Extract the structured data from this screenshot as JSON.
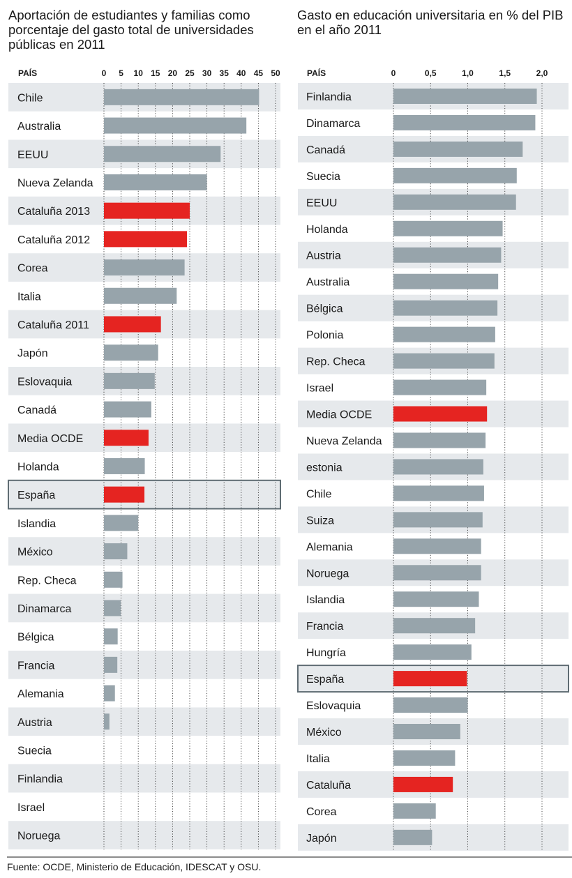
{
  "source": "Fuente: OCDE, Ministerio de Educación, IDESCAT y OSU.",
  "colors": {
    "bar": "#97a4ab",
    "highlight": "#e52421",
    "band": "#e6e9ec",
    "frame": "#5f6c73"
  },
  "chart_data": [
    {
      "type": "bar",
      "orientation": "horizontal",
      "title": "Aportación de estudiantes y familias como porcentaje del gasto total de universidades públicas en 2011",
      "category_header": "PAÍS",
      "xlim": [
        0,
        50
      ],
      "xticks": [
        0,
        5,
        10,
        15,
        20,
        25,
        30,
        35,
        40,
        45,
        50
      ],
      "xtick_labels": [
        "0",
        "5",
        "10",
        "15",
        "20",
        "25",
        "30",
        "35",
        "40",
        "45",
        "50"
      ],
      "grid": "vertical dotted",
      "categories": [
        "Chile",
        "Australia",
        "EEUU",
        "Nueva Zelanda",
        "Cataluña 2013",
        "Cataluña 2012",
        "Corea",
        "Italia",
        "Cataluña 2011",
        "Japón",
        "Eslovaquia",
        "Canadá",
        "Media OCDE",
        "Holanda",
        "España",
        "Islandia",
        "México",
        "Rep. Checa",
        "Dinamarca",
        "Bélgica",
        "Francia",
        "Alemania",
        "Austria",
        "Suecia",
        "Finlandia",
        "Israel",
        "Noruega"
      ],
      "values": [
        45.2,
        41.5,
        34,
        30,
        25,
        24.2,
        23.5,
        21.2,
        16.6,
        15.8,
        14.8,
        13.8,
        13,
        11.9,
        11.8,
        10,
        6.8,
        5.4,
        4.9,
        4,
        3.9,
        3.2,
        1.6,
        0,
        0,
        0,
        0
      ],
      "highlighted": [
        "Cataluña 2013",
        "Cataluña 2012",
        "Cataluña 2011",
        "Media OCDE",
        "España"
      ],
      "boxed": "España"
    },
    {
      "type": "bar",
      "orientation": "horizontal",
      "title": "Gasto en educación universitaria en % del PIB en el año 2011",
      "category_header": "PAÍS",
      "xlim": [
        0,
        2.2
      ],
      "xticks": [
        0,
        0.5,
        1.0,
        1.5,
        2.0
      ],
      "xtick_labels": [
        "0",
        "0,5",
        "1,0",
        "1,5",
        "2,0"
      ],
      "grid": "vertical dotted",
      "categories": [
        "Finlandia",
        "Dinamarca",
        "Canadá",
        "Suecia",
        "EEUU",
        "Holanda",
        "Austria",
        "Australia",
        "Bélgica",
        "Polonia",
        "Rep. Checa",
        "Israel",
        "Media OCDE",
        "Nueva Zelanda",
        "estonia",
        "Chile",
        "Suiza",
        "Alemania",
        "Noruega",
        "Islandia",
        "Francia",
        "Hungría",
        "España",
        "Eslovaquia",
        "México",
        "Italia",
        "Cataluña",
        "Corea",
        "Japón"
      ],
      "values": [
        1.93,
        1.91,
        1.74,
        1.66,
        1.65,
        1.47,
        1.45,
        1.41,
        1.4,
        1.37,
        1.36,
        1.25,
        1.26,
        1.24,
        1.21,
        1.22,
        1.2,
        1.18,
        1.18,
        1.15,
        1.1,
        1.05,
        0.99,
        1.0,
        0.9,
        0.83,
        0.8,
        0.57,
        0.52
      ],
      "highlighted": [
        "Media OCDE",
        "España",
        "Cataluña"
      ],
      "boxed": "España"
    }
  ]
}
